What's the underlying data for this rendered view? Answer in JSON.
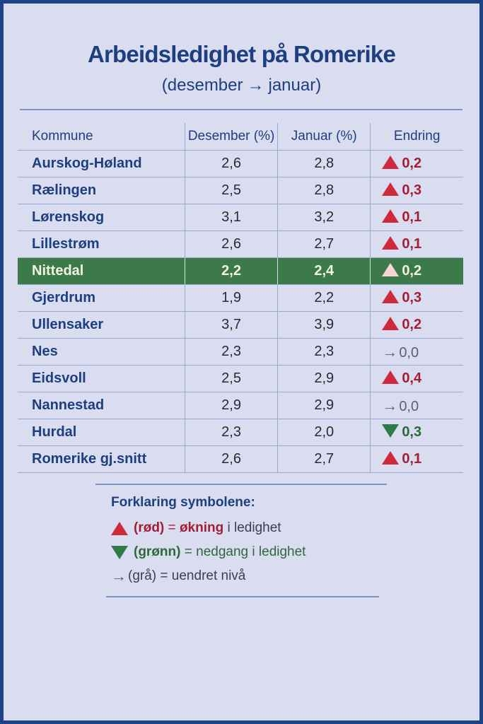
{
  "title": "Arbeidsledighet på Romerike",
  "subtitle": {
    "from": "(desember",
    "arrow": "→",
    "to": "januar)"
  },
  "table": {
    "headers": [
      "Kommune",
      "Desember (%)",
      "Januar (%)",
      "Endring"
    ],
    "rows": [
      {
        "kommune": "Aurskog-Høland",
        "desember": "2,6",
        "januar": "2,8",
        "endring": "0,2",
        "trend": "up",
        "highlight": false
      },
      {
        "kommune": "Rælingen",
        "desember": "2,5",
        "januar": "2,8",
        "endring": "0,3",
        "trend": "up",
        "highlight": false
      },
      {
        "kommune": "Lørenskog",
        "desember": "3,1",
        "januar": "3,2",
        "endring": "0,1",
        "trend": "up",
        "highlight": false
      },
      {
        "kommune": "Lillestrøm",
        "desember": "2,6",
        "januar": "2,7",
        "endring": "0,1",
        "trend": "up",
        "highlight": false
      },
      {
        "kommune": "Nittedal",
        "desember": "2,2",
        "januar": "2,4",
        "endring": "0,2",
        "trend": "up",
        "highlight": true
      },
      {
        "kommune": "Gjerdrum",
        "desember": "1,9",
        "januar": "2,2",
        "endring": "0,3",
        "trend": "up",
        "highlight": false
      },
      {
        "kommune": "Ullensaker",
        "desember": "3,7",
        "januar": "3,9",
        "endring": "0,2",
        "trend": "up",
        "highlight": false
      },
      {
        "kommune": "Nes",
        "desember": "2,3",
        "januar": "2,3",
        "endring": "0,0",
        "trend": "flat",
        "highlight": false
      },
      {
        "kommune": "Eidsvoll",
        "desember": "2,5",
        "januar": "2,9",
        "endring": "0,4",
        "trend": "up",
        "highlight": false
      },
      {
        "kommune": "Nannestad",
        "desember": "2,9",
        "januar": "2,9",
        "endring": "0,0",
        "trend": "flat",
        "highlight": false
      },
      {
        "kommune": "Hurdal",
        "desember": "2,3",
        "januar": "2,0",
        "endring": "0,3",
        "trend": "down",
        "highlight": false
      },
      {
        "kommune": "Romerike gj.snitt",
        "desember": "2,6",
        "januar": "2,7",
        "endring": "0,1",
        "trend": "up",
        "highlight": false
      }
    ]
  },
  "legend": {
    "title": "Forklaring symbolene:",
    "items": [
      {
        "icon": "triangle-up-red",
        "color_label": "(rød)",
        "eq": "=",
        "keyword": "økning",
        "rest": "i ledighet"
      },
      {
        "icon": "triangle-down-green",
        "color_label": "(grønn)",
        "eq": "=",
        "keyword": "nedgang",
        "rest": "i ledighet"
      },
      {
        "icon": "arrow-right-gray",
        "color_label": "(grå)",
        "eq": "=",
        "keyword": "uendret nivå",
        "rest": ""
      }
    ]
  },
  "colors": {
    "border": "#1d4384",
    "background": "#dadcf0",
    "title": "#1d3f80",
    "increase": "#cf2a3b",
    "decrease": "#2f7a45",
    "unchanged": "#5c6178",
    "highlight_row": "#3c7a4a"
  }
}
